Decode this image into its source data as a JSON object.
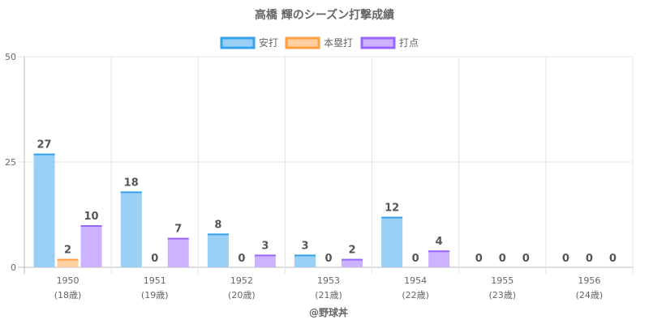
{
  "chart_data": {
    "type": "bar",
    "title": "高橋 輝のシーズン打撃成績",
    "categories": [
      "1950",
      "1951",
      "1952",
      "1953",
      "1954",
      "1955",
      "1956"
    ],
    "category_sublabels": [
      "(18歳)",
      "(19歳)",
      "(20歳)",
      "(21歳)",
      "(22歳)",
      "(23歳)",
      "(24歳)"
    ],
    "series": [
      {
        "name": "安打",
        "values": [
          27,
          18,
          8,
          3,
          12,
          0,
          0
        ],
        "fill": "#9ad0f5",
        "stroke": "#36a2eb"
      },
      {
        "name": "本塁打",
        "values": [
          2,
          0,
          0,
          0,
          0,
          0,
          0
        ],
        "fill": "#ffcf9f",
        "stroke": "#ff9f40"
      },
      {
        "name": "打点",
        "values": [
          10,
          7,
          3,
          2,
          4,
          0,
          0
        ],
        "fill": "#ccb2ff",
        "stroke": "#9966ff"
      }
    ],
    "ylim": [
      0,
      50
    ],
    "yticks": [
      "0",
      "25",
      "50"
    ],
    "grid": true,
    "legend_position": "top-center",
    "credit": "@野球丼"
  }
}
